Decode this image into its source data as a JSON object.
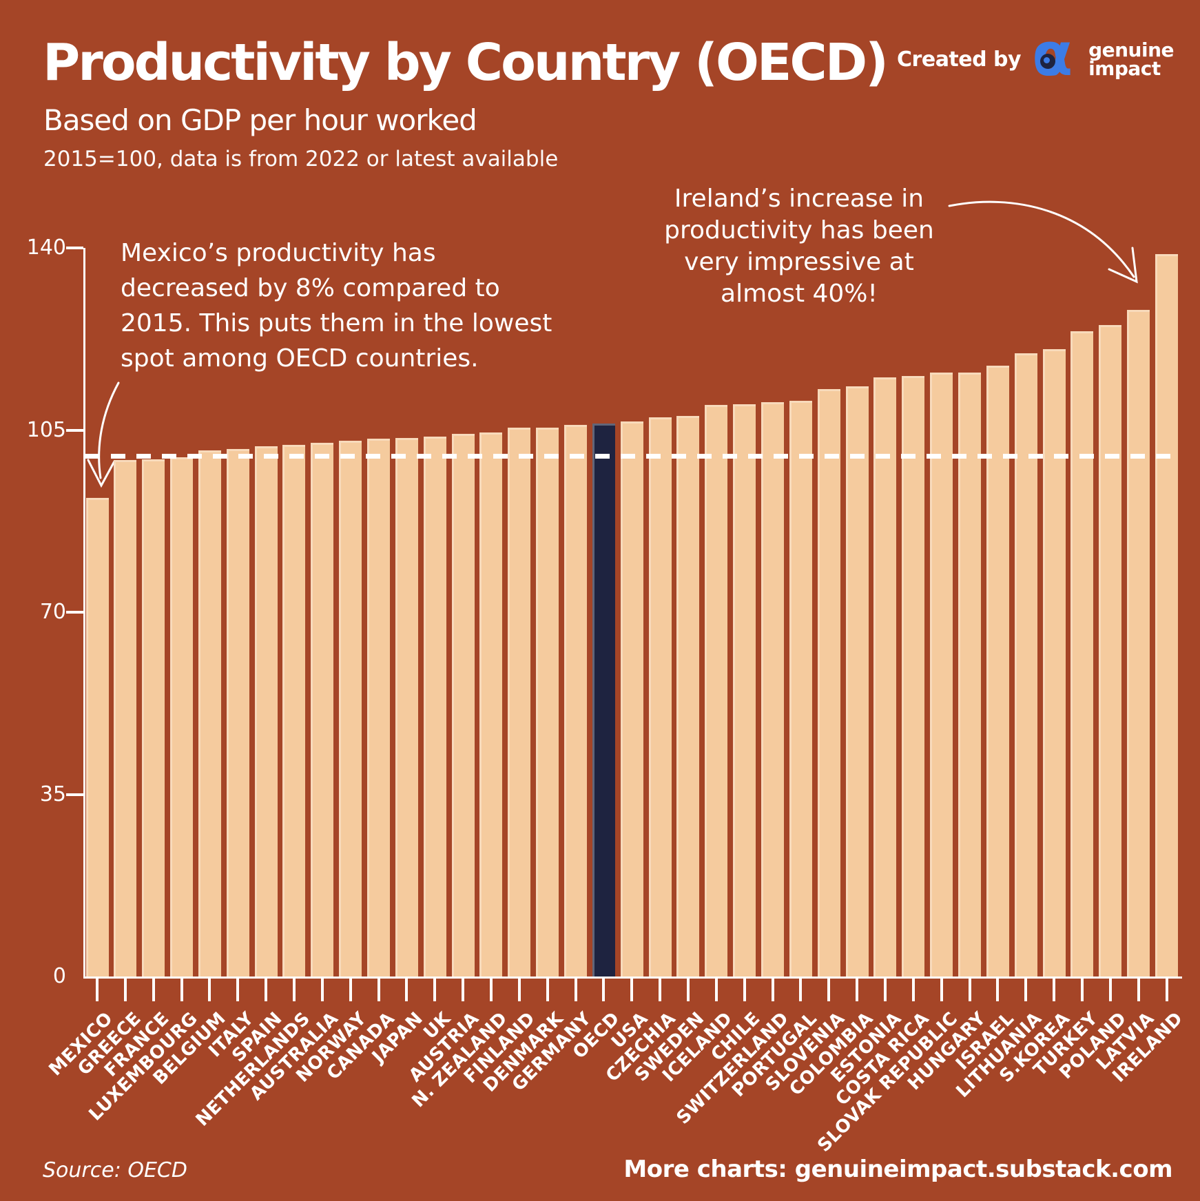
{
  "header": {
    "title": "Productivity by Country (OECD)",
    "subtitle": "Based on GDP per hour worked",
    "note": "2015=100, data is from 2022 or latest available",
    "credit": {
      "label": "Created by",
      "logo_icon": "genuine-impact-alpha-logo",
      "brand_top": "genuine",
      "brand_bottom": "impact"
    }
  },
  "annotations": {
    "mexico": "Mexico’s productivity has\ndecreased by 8% compared to\n2015. This puts them in the lowest\nspot among OECD countries.",
    "ireland": "Ireland’s increase in\nproductivity has been\nvery impressive at\nalmost 40%!"
  },
  "footer": {
    "source": "Source: OECD",
    "more_charts": "More charts: genuineimpact.substack.com"
  },
  "colors": {
    "background": "#A54527",
    "bar": "#F5CB9E",
    "bar_highlight": "#1E2340",
    "text": "#FFFFFF",
    "logo_blue": "#3C7CE6",
    "reference_line": "#FFFFFF"
  },
  "chart_data": {
    "type": "bar",
    "title": "Productivity by Country (OECD)",
    "subtitle": "Based on GDP per hour worked",
    "unit_note": "2015=100, data is from 2022 or latest available",
    "categories": [
      "MEXICO",
      "GREECE",
      "FRANCE",
      "LUXEMBOURG",
      "BELGIUM",
      "ITALY",
      "SPAIN",
      "NETHERLANDS",
      "AUSTRALIA",
      "NORWAY",
      "CANADA",
      "JAPAN",
      "UK",
      "AUSTRIA",
      "N. ZEALAND",
      "FINLAND",
      "DENMARK",
      "GERMANY",
      "OECD",
      "USA",
      "CZECHIA",
      "SWEDEN",
      "ICELAND",
      "CHILE",
      "SWITZERLAND",
      "PORTUGAL",
      "SLOVENIA",
      "COLOMBIA",
      "ESTONIA",
      "COSTA RICA",
      "SLOVAK REPUBLIC",
      "HUNGARY",
      "ISRAEL",
      "LITHUANIA",
      "S.KOREA",
      "TURKEY",
      "POLAND",
      "LATVIA",
      "IRELAND"
    ],
    "values": [
      92,
      99.3,
      99.4,
      99.8,
      101.1,
      101.3,
      101.9,
      102.1,
      102.6,
      102.9,
      103.3,
      103.5,
      103.8,
      104.3,
      104.6,
      105.4,
      105.5,
      106,
      106.3,
      106.6,
      107.4,
      107.7,
      109.8,
      109.9,
      110.4,
      110.6,
      112.9,
      113.4,
      115.1,
      115.4,
      116,
      116.1,
      117.4,
      119.8,
      120.5,
      124,
      125.2,
      128.1,
      138.8
    ],
    "highlight_category": "OECD",
    "xlabel": "",
    "ylabel": "",
    "ylim": [
      0,
      140
    ],
    "yticks": [
      0,
      35,
      70,
      105,
      140
    ],
    "reference_line_y": 100,
    "grid": false,
    "legend": false
  }
}
